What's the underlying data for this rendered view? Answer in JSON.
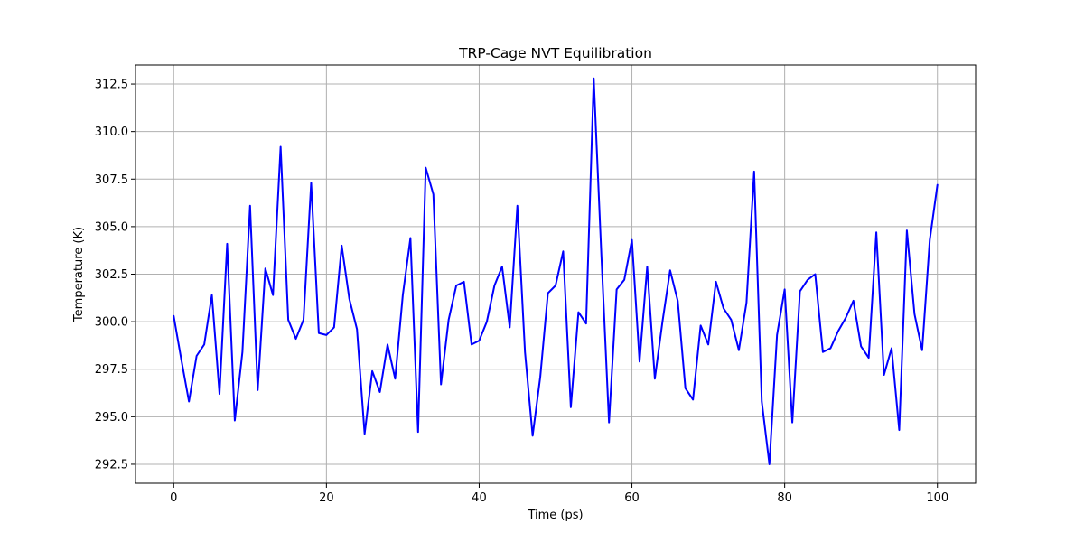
{
  "chart_data": {
    "type": "line",
    "title": "TRP-Cage NVT Equilibration",
    "xlabel": "Time (ps)",
    "ylabel": "Temperature (K)",
    "xlim": [
      -5,
      105
    ],
    "ylim": [
      291.5,
      313.5
    ],
    "xticks": [
      0,
      20,
      40,
      60,
      80,
      100
    ],
    "yticks": [
      292.5,
      295.0,
      297.5,
      300.0,
      302.5,
      305.0,
      307.5,
      310.0,
      312.5
    ],
    "xtick_labels": [
      "0",
      "20",
      "40",
      "60",
      "80",
      "100"
    ],
    "ytick_labels": [
      "292.5",
      "295.0",
      "297.5",
      "300.0",
      "302.5",
      "305.0",
      "307.5",
      "310.0",
      "312.5"
    ],
    "grid": true,
    "legend": false,
    "series": [
      {
        "color": "#0000ff",
        "x": [
          0,
          1,
          2,
          3,
          4,
          5,
          6,
          7,
          8,
          9,
          10,
          11,
          12,
          13,
          14,
          15,
          16,
          17,
          18,
          19,
          20,
          21,
          22,
          23,
          24,
          25,
          26,
          27,
          28,
          29,
          30,
          31,
          32,
          33,
          34,
          35,
          36,
          37,
          38,
          39,
          40,
          41,
          42,
          43,
          44,
          45,
          46,
          47,
          48,
          49,
          50,
          51,
          52,
          53,
          54,
          55,
          56,
          57,
          58,
          59,
          60,
          61,
          62,
          63,
          64,
          65,
          66,
          67,
          68,
          69,
          70,
          71,
          72,
          73,
          74,
          75,
          76,
          77,
          78,
          79,
          80,
          81,
          82,
          83,
          84,
          85,
          86,
          87,
          88,
          89,
          90,
          91,
          92,
          93,
          94,
          95,
          96,
          97,
          98,
          99,
          100
        ],
        "y": [
          300.3,
          298.0,
          295.8,
          298.2,
          298.8,
          301.4,
          296.2,
          304.1,
          294.8,
          298.4,
          306.1,
          296.4,
          302.8,
          301.4,
          309.2,
          300.1,
          299.1,
          300.1,
          307.3,
          299.4,
          299.3,
          299.7,
          304.0,
          301.2,
          299.6,
          294.1,
          297.4,
          296.3,
          298.8,
          297.0,
          301.4,
          304.4,
          294.2,
          308.1,
          306.7,
          296.7,
          300.1,
          301.9,
          302.1,
          298.8,
          299.0,
          300.0,
          301.9,
          302.9,
          299.7,
          306.1,
          298.4,
          294.0,
          297.1,
          301.5,
          301.9,
          303.7,
          295.5,
          300.5,
          299.9,
          312.8,
          303.5,
          294.7,
          301.7,
          302.2,
          304.3,
          297.9,
          302.9,
          297.0,
          300.0,
          302.7,
          301.1,
          296.5,
          295.9,
          299.8,
          298.8,
          302.1,
          300.7,
          300.1,
          298.5,
          301.0,
          307.9,
          295.8,
          292.5,
          299.3,
          301.7,
          294.7,
          301.6,
          302.2,
          302.5,
          298.4,
          298.6,
          299.5,
          300.2,
          301.1,
          298.7,
          298.1,
          304.7,
          297.2,
          298.6,
          294.3,
          304.8,
          300.4,
          298.5,
          304.3,
          307.2
        ]
      }
    ]
  }
}
